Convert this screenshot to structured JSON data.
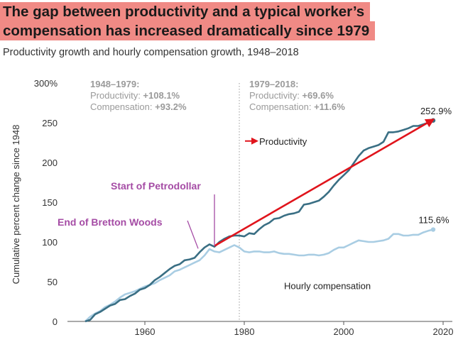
{
  "header": {
    "title_line1": "The gap between productivity and a typical worker’s",
    "title_line2": "compensation has increased dramatically since 1979",
    "subtitle": "Productivity growth and hourly compensation growth, 1948–2018"
  },
  "colors": {
    "productivity": "#3a6f84",
    "compensation": "#a9cde3",
    "trend_arrow": "#e0141c",
    "annotation_purple": "#a54ca5",
    "title_highlight": "#f08a85",
    "stat_text": "#9a9a9a"
  },
  "chart_data": {
    "type": "line",
    "ylabel": "Cumulative percent change since 1948",
    "xlabel": "",
    "xlim": [
      1944,
      2021
    ],
    "ylim": [
      0,
      300
    ],
    "x_ticks": [
      1960,
      1980,
      2000,
      2020
    ],
    "y_ticks": [
      0,
      50,
      100,
      150,
      200,
      250,
      300
    ],
    "y_tick_labels": [
      "0",
      "50",
      "100",
      "150",
      "200",
      "250",
      "300%"
    ],
    "grid": false,
    "divider_year": 1979,
    "periods": [
      {
        "heading": "1948–1979:",
        "productivity_label": "Productivity:",
        "productivity_value": "+108.1%",
        "compensation_label": "Compensation:",
        "compensation_value": "+93.2%"
      },
      {
        "heading": "1979–2018:",
        "productivity_label": "Productivity:",
        "productivity_value": "+69.6%",
        "compensation_label": "Compensation:",
        "compensation_value": "+11.6%"
      }
    ],
    "series": [
      {
        "name": "Productivity",
        "x": [
          1948,
          1949,
          1950,
          1951,
          1952,
          1953,
          1954,
          1955,
          1956,
          1957,
          1958,
          1959,
          1960,
          1961,
          1962,
          1963,
          1964,
          1965,
          1966,
          1967,
          1968,
          1969,
          1970,
          1971,
          1972,
          1973,
          1974,
          1975,
          1976,
          1977,
          1978,
          1979,
          1980,
          1981,
          1982,
          1983,
          1984,
          1985,
          1986,
          1987,
          1988,
          1989,
          1990,
          1991,
          1992,
          1993,
          1994,
          1995,
          1996,
          1997,
          1998,
          1999,
          2000,
          2001,
          2002,
          2003,
          2004,
          2005,
          2006,
          2007,
          2008,
          2009,
          2010,
          2011,
          2012,
          2013,
          2014,
          2015,
          2016,
          2017,
          2018
        ],
        "values": [
          0,
          2,
          9,
          12,
          16,
          20,
          22,
          27,
          28,
          32,
          35,
          40,
          42,
          46,
          52,
          56,
          61,
          66,
          70,
          72,
          77,
          78,
          80,
          87,
          93,
          97,
          94,
          100,
          104,
          107,
          108,
          108,
          107,
          111,
          110,
          116,
          121,
          124,
          129,
          130,
          133,
          135,
          136,
          138,
          147,
          148,
          150,
          152,
          157,
          163,
          171,
          178,
          184,
          190,
          199,
          208,
          215,
          218,
          220,
          222,
          226,
          238,
          238,
          239,
          241,
          243,
          246,
          246,
          248,
          250,
          252.9
        ]
      },
      {
        "name": "Hourly compensation",
        "x": [
          1948,
          1949,
          1950,
          1951,
          1952,
          1953,
          1954,
          1955,
          1956,
          1957,
          1958,
          1959,
          1960,
          1961,
          1962,
          1963,
          1964,
          1965,
          1966,
          1967,
          1968,
          1969,
          1970,
          1971,
          1972,
          1973,
          1974,
          1975,
          1976,
          1977,
          1978,
          1979,
          1980,
          1981,
          1982,
          1983,
          1984,
          1985,
          1986,
          1987,
          1988,
          1989,
          1990,
          1991,
          1992,
          1993,
          1994,
          1995,
          1996,
          1997,
          1998,
          1999,
          2000,
          2001,
          2002,
          2003,
          2004,
          2005,
          2006,
          2007,
          2008,
          2009,
          2010,
          2011,
          2012,
          2013,
          2014,
          2015,
          2016,
          2017,
          2018
        ],
        "values": [
          0,
          6,
          10,
          13,
          18,
          21,
          25,
          30,
          34,
          36,
          38,
          41,
          44,
          46,
          48,
          52,
          55,
          58,
          63,
          65,
          68,
          71,
          74,
          77,
          83,
          91,
          88,
          87,
          90,
          93,
          96,
          93,
          88,
          87,
          88,
          88,
          87,
          87,
          88,
          86,
          85,
          85,
          84,
          83,
          83,
          84,
          84,
          83,
          84,
          86,
          90,
          93,
          93,
          96,
          99,
          102,
          101,
          100,
          100,
          101,
          102,
          104,
          110,
          110,
          108,
          108,
          109,
          109,
          112,
          114,
          115.6
        ]
      }
    ],
    "end_labels": [
      {
        "series": "Productivity",
        "text": "252.9%",
        "x": 2018,
        "y": 252.9
      },
      {
        "series": "Hourly compensation",
        "text": "115.6%",
        "x": 2018,
        "y": 115.6
      }
    ],
    "series_labels": [
      {
        "series": "Productivity",
        "text": "Productivity"
      },
      {
        "series": "Hourly compensation",
        "text": "Hourly compensation"
      }
    ],
    "trend_arrow": {
      "from": {
        "x": 1974,
        "y": 95
      },
      "to": {
        "x": 2018,
        "y": 254
      }
    },
    "annotations": [
      {
        "text": "Start of Petrodollar",
        "x": 1974,
        "y": 94
      },
      {
        "text": "End of Bretton Woods",
        "x": 1971,
        "y": 89
      }
    ]
  }
}
